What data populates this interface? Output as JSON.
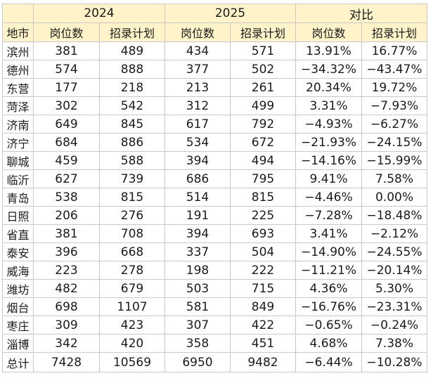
{
  "header": {
    "year_a": "2024",
    "year_b": "2025",
    "compare": "对比",
    "city": "地市",
    "col_positions": "岗位数",
    "col_plan": "招录计划"
  },
  "rows": [
    {
      "city": "滨州",
      "p24": "381",
      "r24": "489",
      "p25": "434",
      "r25": "571",
      "dp": "13.91%",
      "dr": "16.77%"
    },
    {
      "city": "德州",
      "p24": "574",
      "r24": "888",
      "p25": "377",
      "r25": "502",
      "dp": "−34.32%",
      "dr": "−43.47%"
    },
    {
      "city": "东营",
      "p24": "177",
      "r24": "218",
      "p25": "213",
      "r25": "261",
      "dp": "20.34%",
      "dr": "19.72%"
    },
    {
      "city": "菏泽",
      "p24": "302",
      "r24": "542",
      "p25": "312",
      "r25": "499",
      "dp": "3.31%",
      "dr": "−7.93%"
    },
    {
      "city": "济南",
      "p24": "649",
      "r24": "845",
      "p25": "617",
      "r25": "792",
      "dp": "−4.93%",
      "dr": "−6.27%"
    },
    {
      "city": "济宁",
      "p24": "684",
      "r24": "886",
      "p25": "534",
      "r25": "672",
      "dp": "−21.93%",
      "dr": "−24.15%"
    },
    {
      "city": "聊城",
      "p24": "459",
      "r24": "588",
      "p25": "394",
      "r25": "494",
      "dp": "−14.16%",
      "dr": "−15.99%"
    },
    {
      "city": "临沂",
      "p24": "627",
      "r24": "739",
      "p25": "686",
      "r25": "795",
      "dp": "9.41%",
      "dr": "7.58%"
    },
    {
      "city": "青岛",
      "p24": "538",
      "r24": "815",
      "p25": "514",
      "r25": "815",
      "dp": "−4.46%",
      "dr": "0.00%"
    },
    {
      "city": "日照",
      "p24": "206",
      "r24": "276",
      "p25": "191",
      "r25": "225",
      "dp": "−7.28%",
      "dr": "−18.48%"
    },
    {
      "city": "省直",
      "p24": "381",
      "r24": "708",
      "p25": "394",
      "r25": "693",
      "dp": "3.41%",
      "dr": "−2.12%"
    },
    {
      "city": "泰安",
      "p24": "396",
      "r24": "668",
      "p25": "337",
      "r25": "504",
      "dp": "−14.90%",
      "dr": "−24.55%"
    },
    {
      "city": "威海",
      "p24": "223",
      "r24": "278",
      "p25": "198",
      "r25": "222",
      "dp": "−11.21%",
      "dr": "−20.14%"
    },
    {
      "city": "潍坊",
      "p24": "482",
      "r24": "679",
      "p25": "503",
      "r25": "715",
      "dp": "4.36%",
      "dr": "5.30%"
    },
    {
      "city": "烟台",
      "p24": "698",
      "r24": "1107",
      "p25": "581",
      "r25": "849",
      "dp": "−16.76%",
      "dr": "−23.31%"
    },
    {
      "city": "枣庄",
      "p24": "309",
      "r24": "423",
      "p25": "307",
      "r25": "422",
      "dp": "−0.65%",
      "dr": "−0.24%"
    },
    {
      "city": "淄博",
      "p24": "342",
      "r24": "420",
      "p25": "358",
      "r25": "451",
      "dp": "4.68%",
      "dr": "7.38%"
    }
  ],
  "total": {
    "city": "总计",
    "p24": "7428",
    "r24": "10569",
    "p25": "6950",
    "r25": "9482",
    "dp": "−6.44%",
    "dr": "−10.28%"
  },
  "colors": {
    "header_bg": "#fff3c9",
    "border": "#c9c9c9",
    "text": "#1a1a1a"
  }
}
